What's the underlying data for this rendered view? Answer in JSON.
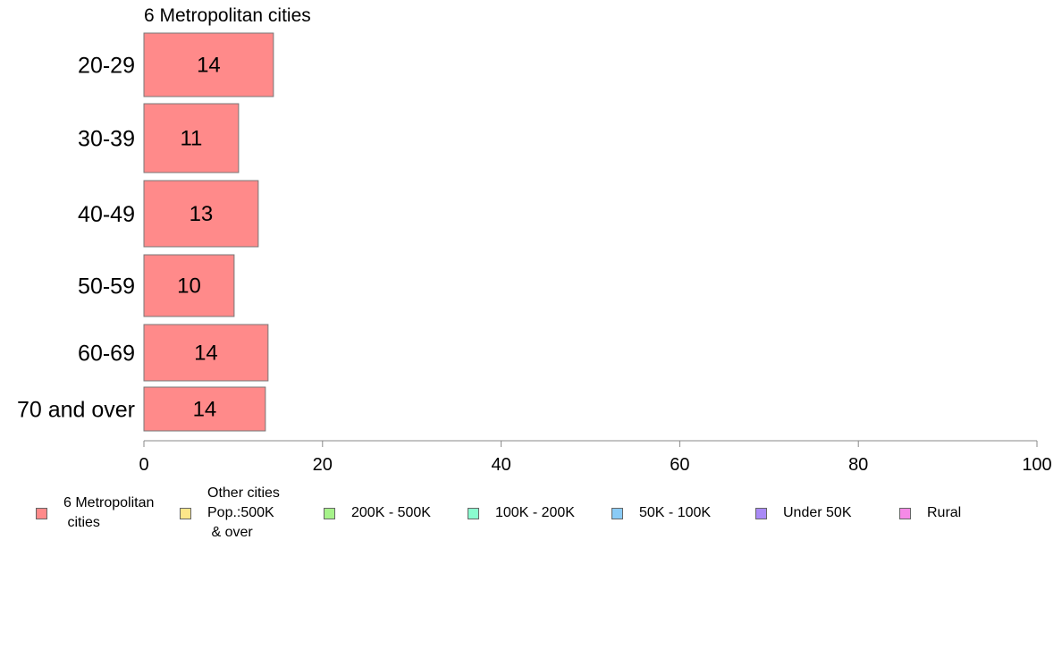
{
  "chart_data": {
    "type": "bar",
    "orientation": "horizontal",
    "title": "6 Metropolitan cities",
    "categories": [
      "20-29",
      "30-39",
      "40-49",
      "50-59",
      "60-69",
      "70 and over"
    ],
    "series": [
      {
        "name": "6 Metropolitan\n cities",
        "values": [
          14.5,
          10.6,
          12.8,
          10.1,
          13.9,
          13.6
        ],
        "labels": [
          "14",
          "11",
          "13",
          "10",
          "14",
          "14"
        ],
        "color": "#ff8a8a"
      }
    ],
    "xlim": [
      0,
      100
    ],
    "xticks": [
      "0",
      "20",
      "40",
      "60",
      "80",
      "100"
    ],
    "grid": false,
    "legend_position": "bottom"
  },
  "legend": [
    {
      "label": "6 Metropolitan\n cities",
      "color": "#ff8a8a"
    },
    {
      "label": "Other cities\nPop.:500K\n & over",
      "color": "#fde68a"
    },
    {
      "label": "200K - 500K",
      "color": "#a6f28a"
    },
    {
      "label": "100K - 200K",
      "color": "#8afccf"
    },
    {
      "label": "50K - 100K",
      "color": "#8acbf6"
    },
    {
      "label": "Under 50K",
      "color": "#a98af6"
    },
    {
      "label": "Rural",
      "color": "#f58ae6"
    }
  ]
}
